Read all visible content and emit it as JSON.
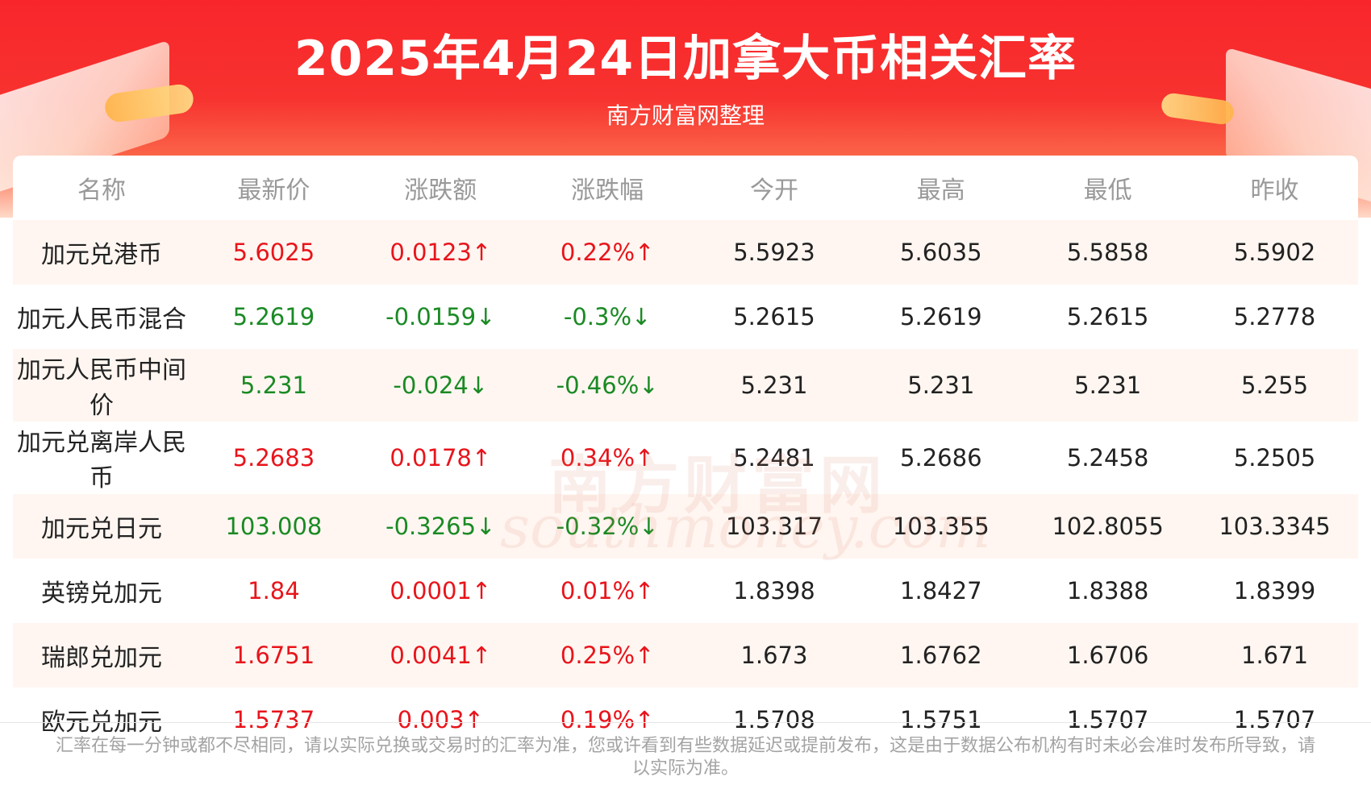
{
  "title": "2025年4月24日加拿大币相关汇率",
  "subtitle": "南方财富网整理",
  "colors": {
    "up": "#e8141b",
    "down": "#1a8a24",
    "banner": "#f8262b"
  },
  "watermark": {
    "cn": "南方财富网",
    "en": "southmoney.com"
  },
  "table": {
    "headers": [
      "名称",
      "最新价",
      "涨跌额",
      "涨跌幅",
      "今开",
      "最高",
      "最低",
      "昨收"
    ],
    "rows": [
      {
        "name": "加元兑港币",
        "latest": "5.6025",
        "change": "0.0123↑",
        "pct": "0.22%↑",
        "open": "5.5923",
        "high": "5.6035",
        "low": "5.5858",
        "prev_close": "5.5902",
        "direction": "up"
      },
      {
        "name": "加元人民币混合",
        "latest": "5.2619",
        "change": "-0.0159↓",
        "pct": "-0.3%↓",
        "open": "5.2615",
        "high": "5.2619",
        "low": "5.2615",
        "prev_close": "5.2778",
        "direction": "down"
      },
      {
        "name": "加元人民币中间价",
        "latest": "5.231",
        "change": "-0.024↓",
        "pct": "-0.46%↓",
        "open": "5.231",
        "high": "5.231",
        "low": "5.231",
        "prev_close": "5.255",
        "direction": "down"
      },
      {
        "name": "加元兑离岸人民币",
        "latest": "5.2683",
        "change": "0.0178↑",
        "pct": "0.34%↑",
        "open": "5.2481",
        "high": "5.2686",
        "low": "5.2458",
        "prev_close": "5.2505",
        "direction": "up"
      },
      {
        "name": "加元兑日元",
        "latest": "103.008",
        "change": "-0.3265↓",
        "pct": "-0.32%↓",
        "open": "103.317",
        "high": "103.355",
        "low": "102.8055",
        "prev_close": "103.3345",
        "direction": "down"
      },
      {
        "name": "英镑兑加元",
        "latest": "1.84",
        "change": "0.0001↑",
        "pct": "0.01%↑",
        "open": "1.8398",
        "high": "1.8427",
        "low": "1.8388",
        "prev_close": "1.8399",
        "direction": "up"
      },
      {
        "name": "瑞郎兑加元",
        "latest": "1.6751",
        "change": "0.0041↑",
        "pct": "0.25%↑",
        "open": "1.673",
        "high": "1.6762",
        "low": "1.6706",
        "prev_close": "1.671",
        "direction": "up"
      },
      {
        "name": "欧元兑加元",
        "latest": "1.5737",
        "change": "0.003↑",
        "pct": "0.19%↑",
        "open": "1.5708",
        "high": "1.5751",
        "low": "1.5707",
        "prev_close": "1.5707",
        "direction": "up"
      }
    ]
  },
  "footnote": "汇率在每一分钟或都不尽相同，请以实际兑换或交易时的汇率为准，您或许看到有些数据延迟或提前发布，这是由于数据公布机构有时未必会准时发布所导致，请以实际为准。"
}
